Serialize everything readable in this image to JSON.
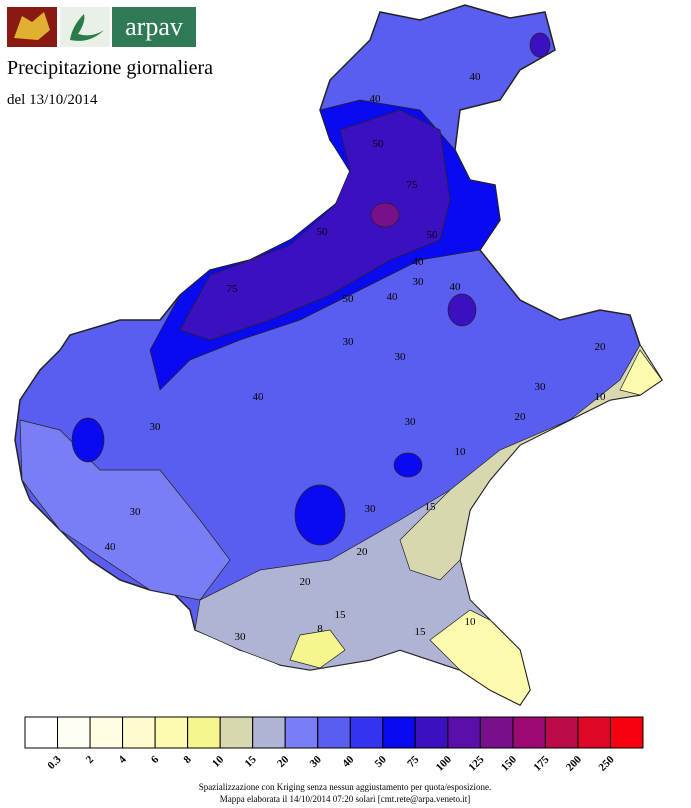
{
  "header": {
    "logo_text": "arpav",
    "title": "Precipitazione giornaliera",
    "date": "del 13/10/2014"
  },
  "map": {
    "contour_labels": [
      "40",
      "40",
      "50",
      "75",
      "75",
      "50",
      "50",
      "40",
      "30",
      "40",
      "50",
      "40",
      "30",
      "30",
      "30",
      "40",
      "30",
      "30",
      "20",
      "20",
      "15",
      "10",
      "30",
      "15",
      "10",
      "20",
      "30",
      "15",
      "8",
      "10",
      "20",
      "30",
      "40"
    ]
  },
  "legend": {
    "colors": [
      "#ffffff",
      "#fefef2",
      "#fffee2",
      "#fefccc",
      "#fdfcae",
      "#f6f68e",
      "#d8d8b0",
      "#b0b4d4",
      "#7a7ef4",
      "#5a5ef0",
      "#3434f0",
      "#0a0af0",
      "#3a10c0",
      "#5a10a8",
      "#78108c",
      "#9a0a70",
      "#bb0a4a",
      "#dd0828",
      "#f80010"
    ],
    "labels": [
      "0.3",
      "2",
      "4",
      "6",
      "8",
      "10",
      "15",
      "20",
      "30",
      "40",
      "50",
      "75",
      "100",
      "125",
      "150",
      "175",
      "200",
      "250"
    ]
  },
  "footer": {
    "line1": "Spazializzazione con Kriging senza nessun aggiustamento per quota/esposizione.",
    "line2": "Mappa elaborata il 14/10/2014 07:20 solari [cmt.rete@arpa.veneto.it]"
  }
}
